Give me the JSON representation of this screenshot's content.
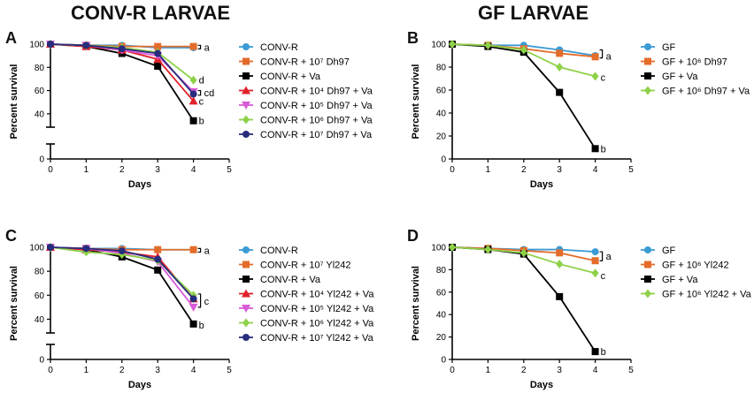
{
  "headers": {
    "left": "CONV-R LARVAE",
    "right": "GF LARVAE"
  },
  "panel_letters": {
    "A": "A",
    "B": "B",
    "C": "C",
    "D": "D"
  },
  "chart_data": [
    {
      "panel": "A",
      "type": "line",
      "xlabel": "Days",
      "ylabel": "Percent survival",
      "xlim": [
        0,
        5
      ],
      "ylim": [
        0,
        100
      ],
      "yaxis_break": [
        10,
        30
      ],
      "xticks": [
        "0",
        "1",
        "2",
        "3",
        "4",
        "5"
      ],
      "yticks": [
        "0",
        "40",
        "60",
        "80",
        "100"
      ],
      "x": [
        0,
        1,
        2,
        3,
        4
      ],
      "series": [
        {
          "name": "CONV-R",
          "color": "#3b9bd5",
          "marker": "circle",
          "values": [
            100,
            99,
            99,
            97,
            97
          ]
        },
        {
          "name": "CONV-R + 10⁷ Dh97",
          "color": "#e46c2b",
          "marker": "square",
          "values": [
            100,
            99,
            98,
            98,
            98
          ]
        },
        {
          "name": "CONV-R + Va",
          "color": "#000000",
          "marker": "square",
          "values": [
            100,
            98,
            92,
            81,
            34
          ]
        },
        {
          "name": "CONV-R + 10⁴ Dh97 + Va",
          "color": "#e0202a",
          "marker": "triangle-up",
          "values": [
            100,
            98,
            95,
            87,
            51
          ]
        },
        {
          "name": "CONV-R + 10⁵ Dh97 + Va",
          "color": "#d85ad8",
          "marker": "triangle-down",
          "values": [
            100,
            99,
            95,
            90,
            59
          ]
        },
        {
          "name": "CONV-R + 10⁶ Dh97 + Va",
          "color": "#8ed148",
          "marker": "diamond",
          "values": [
            100,
            99,
            97,
            93,
            69
          ]
        },
        {
          "name": "CONV-R + 10⁷ Dh97 + Va",
          "color": "#282c7c",
          "marker": "circle",
          "values": [
            100,
            99,
            96,
            92,
            57
          ]
        }
      ],
      "annotations": [
        {
          "text": "a",
          "y": 97.5,
          "bracket": [
            96,
            99
          ]
        },
        {
          "text": "d",
          "y": 69
        },
        {
          "text": "cd",
          "y": 58,
          "bracket": [
            56,
            60
          ]
        },
        {
          "text": "c",
          "y": 51
        },
        {
          "text": "b",
          "y": 34
        }
      ]
    },
    {
      "panel": "B",
      "type": "line",
      "xlabel": "Days",
      "ylabel": "Percent survival",
      "xlim": [
        0,
        5
      ],
      "ylim": [
        0,
        100
      ],
      "xticks": [
        "0",
        "1",
        "2",
        "3",
        "4",
        "5"
      ],
      "yticks": [
        "0",
        "20",
        "40",
        "60",
        "80",
        "100"
      ],
      "x": [
        0,
        1,
        2,
        3,
        4
      ],
      "series": [
        {
          "name": "GF",
          "color": "#3b9bd5",
          "marker": "circle",
          "values": [
            100,
            99,
            99,
            95,
            90
          ]
        },
        {
          "name": "GF + 10⁶ Dh97",
          "color": "#e46c2b",
          "marker": "square",
          "values": [
            100,
            99,
            96,
            92,
            89
          ]
        },
        {
          "name": "GF + Va",
          "color": "#000000",
          "marker": "square",
          "values": [
            100,
            98,
            93,
            58,
            9
          ]
        },
        {
          "name": "GF + 10⁶ Dh97 + Va",
          "color": "#8ed148",
          "marker": "diamond",
          "values": [
            100,
            99,
            95,
            80,
            72
          ]
        }
      ],
      "annotations": [
        {
          "text": "a",
          "y": 89.5,
          "bracket": [
            88,
            95
          ]
        },
        {
          "text": "c",
          "y": 71
        },
        {
          "text": "b",
          "y": 9
        }
      ]
    },
    {
      "panel": "C",
      "type": "line",
      "xlabel": "Days",
      "ylabel": "Percent survival",
      "xlim": [
        0,
        5
      ],
      "ylim": [
        0,
        100
      ],
      "yaxis_break": [
        10,
        30
      ],
      "xticks": [
        "0",
        "1",
        "2",
        "3",
        "4",
        "5"
      ],
      "yticks": [
        "0",
        "40",
        "60",
        "80",
        "100"
      ],
      "x": [
        0,
        1,
        2,
        3,
        4
      ],
      "series": [
        {
          "name": "CONV-R",
          "color": "#3b9bd5",
          "marker": "circle",
          "values": [
            100,
            99,
            99,
            98,
            98
          ]
        },
        {
          "name": "CONV-R + 10⁷ Yl242",
          "color": "#e46c2b",
          "marker": "square",
          "values": [
            100,
            99,
            98,
            98,
            98
          ]
        },
        {
          "name": "CONV-R + Va",
          "color": "#000000",
          "marker": "square",
          "values": [
            100,
            98,
            92,
            81,
            36
          ]
        },
        {
          "name": "CONV-R + 10⁴ Yl242 + Va",
          "color": "#e0202a",
          "marker": "triangle-up",
          "values": [
            100,
            98,
            96,
            92,
            57
          ]
        },
        {
          "name": "CONV-R + 10⁵ Yl242 + Va",
          "color": "#d85ad8",
          "marker": "triangle-down",
          "values": [
            100,
            99,
            95,
            88,
            50
          ]
        },
        {
          "name": "CONV-R + 10⁶ Yl242 + Va",
          "color": "#8ed148",
          "marker": "diamond",
          "values": [
            100,
            96,
            94,
            89,
            60
          ]
        },
        {
          "name": "CONV-R + 10⁷ Yl242 + Va",
          "color": "#282c7c",
          "marker": "circle",
          "values": [
            100,
            99,
            97,
            90,
            57
          ]
        }
      ],
      "annotations": [
        {
          "text": "a",
          "y": 97.5,
          "bracket": [
            96,
            99
          ]
        },
        {
          "text": "c",
          "y": 55,
          "bracket": [
            50,
            61
          ]
        },
        {
          "text": "b",
          "y": 35
        }
      ]
    },
    {
      "panel": "D",
      "type": "line",
      "xlabel": "Days",
      "ylabel": "Percent survival",
      "xlim": [
        0,
        5
      ],
      "ylim": [
        0,
        100
      ],
      "xticks": [
        "0",
        "1",
        "2",
        "3",
        "4",
        "5"
      ],
      "yticks": [
        "0",
        "20",
        "40",
        "60",
        "80",
        "100"
      ],
      "x": [
        0,
        1,
        2,
        3,
        4
      ],
      "series": [
        {
          "name": "GF",
          "color": "#3b9bd5",
          "marker": "circle",
          "values": [
            100,
            99,
            98,
            98,
            96
          ]
        },
        {
          "name": "GF + 10⁶ Yl242",
          "color": "#e46c2b",
          "marker": "square",
          "values": [
            100,
            99,
            97,
            95,
            88
          ]
        },
        {
          "name": "GF + Va",
          "color": "#000000",
          "marker": "square",
          "values": [
            100,
            98,
            94,
            56,
            7
          ]
        },
        {
          "name": "GF + 10⁶ Yl242 + Va",
          "color": "#8ed148",
          "marker": "diamond",
          "values": [
            100,
            98,
            95,
            85,
            77
          ]
        }
      ],
      "annotations": [
        {
          "text": "a",
          "y": 92,
          "bracket": [
            88,
            96
          ]
        },
        {
          "text": "c",
          "y": 75
        },
        {
          "text": "b",
          "y": 7
        }
      ]
    }
  ]
}
